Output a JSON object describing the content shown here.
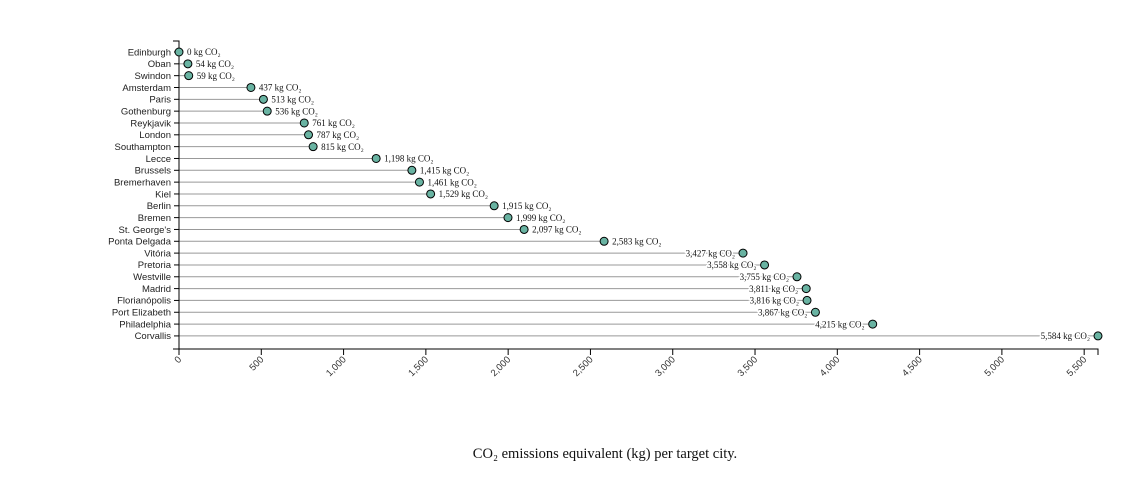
{
  "caption": "CO₂ emissions equivalent (kg) per target city.",
  "colors": {
    "dot_fill": "#69b3a2",
    "dot_stroke": "#000000",
    "stem": "#999999",
    "axis": "#000000"
  },
  "chart_data": {
    "type": "lollipop",
    "orientation": "horizontal",
    "value_unit_suffix": "kg CO₂",
    "categories": [
      "Edinburgh",
      "Oban",
      "Swindon",
      "Amsterdam",
      "Paris",
      "Gothenburg",
      "Reykjavik",
      "London",
      "Southampton",
      "Lecce",
      "Brussels",
      "Bremerhaven",
      "Kiel",
      "Berlin",
      "Bremen",
      "St. George's",
      "Ponta Delgada",
      "Vitória",
      "Pretoria",
      "Westville",
      "Madrid",
      "Florianópolis",
      "Port Elizabeth",
      "Philadelphia",
      "Corvallis"
    ],
    "values": [
      0,
      54,
      59,
      437,
      513,
      536,
      761,
      787,
      815,
      1198,
      1415,
      1461,
      1529,
      1915,
      1999,
      2097,
      2583,
      3427,
      3558,
      3755,
      3811,
      3816,
      3867,
      4215,
      5584
    ],
    "data_labels": [
      "0 kg CO₂",
      "54 kg CO₂",
      "59 kg CO₂",
      "437 kg CO₂",
      "513 kg CO₂",
      "536 kg CO₂",
      "761 kg CO₂",
      "787 kg CO₂",
      "815 kg CO₂",
      "1,198 kg CO₂",
      "1,415 kg CO₂",
      "1,461 kg CO₂",
      "1,529 kg CO₂",
      "1,915 kg CO₂",
      "1,999 kg CO₂",
      "2,097 kg CO₂",
      "2,583 kg CO₂",
      "3,427 kg CO₂",
      "3,558 kg CO₂",
      "3,755 kg CO₂",
      "3,811 kg CO₂",
      "3,816 kg CO₂",
      "3,867 kg CO₂",
      "4,215 kg CO₂",
      "5,584 kg CO₂"
    ],
    "label_placement": [
      "right",
      "right",
      "right",
      "right",
      "right",
      "right",
      "right",
      "right",
      "right",
      "right",
      "right",
      "right",
      "right",
      "right",
      "right",
      "right",
      "right",
      "left",
      "left",
      "left",
      "left",
      "left",
      "left",
      "left",
      "left"
    ],
    "xlim": [
      0,
      5584
    ],
    "x_ticks": [
      0,
      500,
      1000,
      1500,
      2000,
      2500,
      3000,
      3500,
      4000,
      4500,
      5000,
      5500
    ],
    "x_tick_labels": [
      "0",
      "500",
      "1,000",
      "1,500",
      "2,000",
      "2,500",
      "3,000",
      "3,500",
      "4,000",
      "4,500",
      "5,000",
      "5,500"
    ],
    "title": "",
    "xlabel": "",
    "ylabel": "",
    "grid": false,
    "legend": "none"
  }
}
